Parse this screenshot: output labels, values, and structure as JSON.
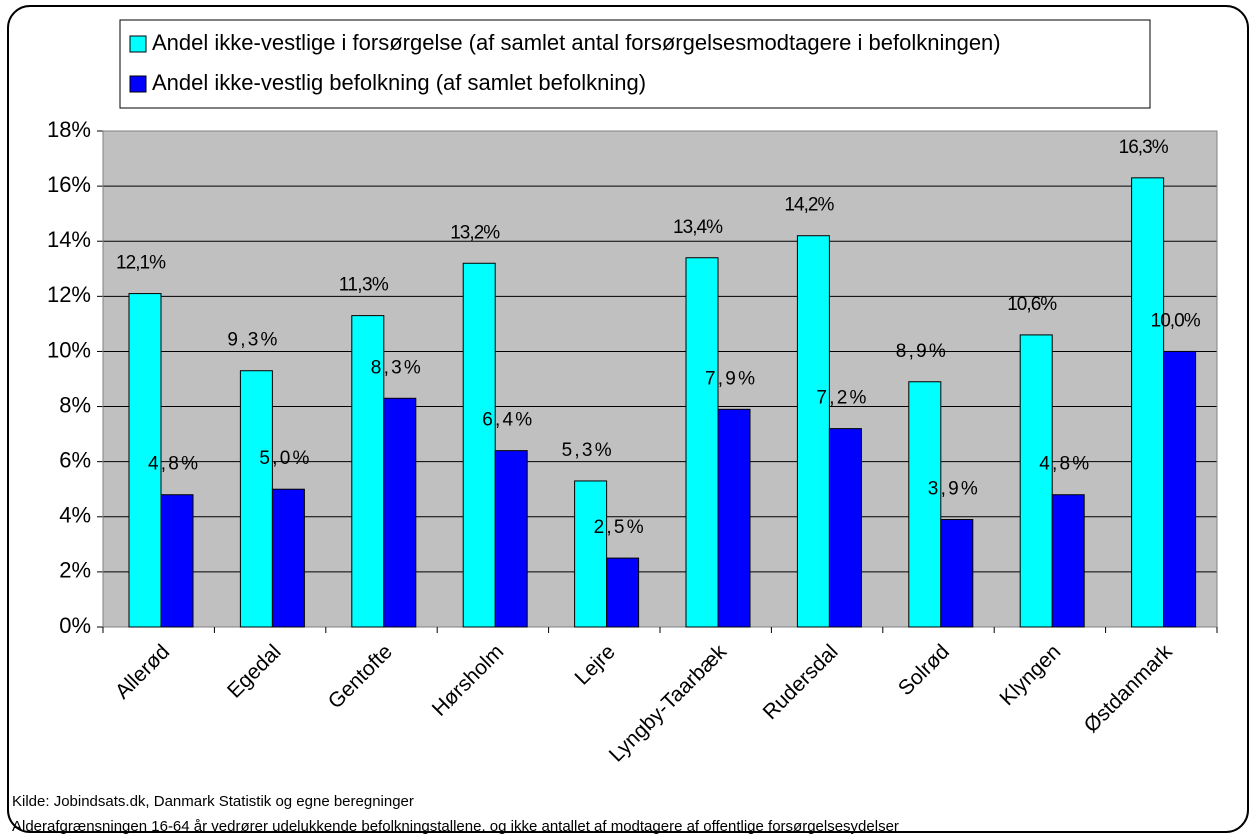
{
  "chart_data": {
    "type": "bar",
    "categories": [
      "Allerød",
      "Egedal",
      "Gentofte",
      "Hørsholm",
      "Lejre",
      "Lyngby-Taarbæk",
      "Rudersdal",
      "Solrød",
      "Klyngen",
      "Østdanmark"
    ],
    "series": [
      {
        "name": "Andel ikke-vestlige i forsørgelse (af samlet antal forsørgelsesmodtagere i befolkningen)",
        "color": "#00ffff",
        "values": [
          12.1,
          9.3,
          11.3,
          13.2,
          5.3,
          13.4,
          14.2,
          8.9,
          10.6,
          16.3
        ],
        "value_labels": [
          "12,1%",
          "9,3%",
          "11,3%",
          "13,2%",
          "5,3%",
          "13,4%",
          "14,2%",
          "8,9%",
          "10,6%",
          "16,3%"
        ]
      },
      {
        "name": "Andel ikke-vestlig befolkning (af samlet befolkning)",
        "color": "#0000ff",
        "values": [
          4.8,
          5.0,
          8.3,
          6.4,
          2.5,
          7.9,
          7.2,
          3.9,
          4.8,
          10.0
        ],
        "value_labels": [
          "4,8%",
          "5,0%",
          "8,3%",
          "6,4%",
          "2,5%",
          "7,9%",
          "7,2%",
          "3,9%",
          "4,8%",
          "10,0%"
        ]
      }
    ],
    "ylim": [
      0,
      18
    ],
    "yticks": [
      {
        "value": 0,
        "label": "0%"
      },
      {
        "value": 2,
        "label": "2%"
      },
      {
        "value": 4,
        "label": "4%"
      },
      {
        "value": 6,
        "label": "6%"
      },
      {
        "value": 8,
        "label": "8%"
      },
      {
        "value": 10,
        "label": "10%"
      },
      {
        "value": 12,
        "label": "12%"
      },
      {
        "value": 14,
        "label": "14%"
      },
      {
        "value": 16,
        "label": "16%"
      },
      {
        "value": 18,
        "label": "18%"
      }
    ],
    "grid": true,
    "legend": "top",
    "notes": [
      "Kilde: Jobindsats.dk, Danmark Statistik og egne beregninger",
      "Alderafgrænsningen 16-64 år vedrører udelukkende befolkningstallene, og ikke antallet af modtagere af offentlige forsørgelsesydelser"
    ]
  }
}
